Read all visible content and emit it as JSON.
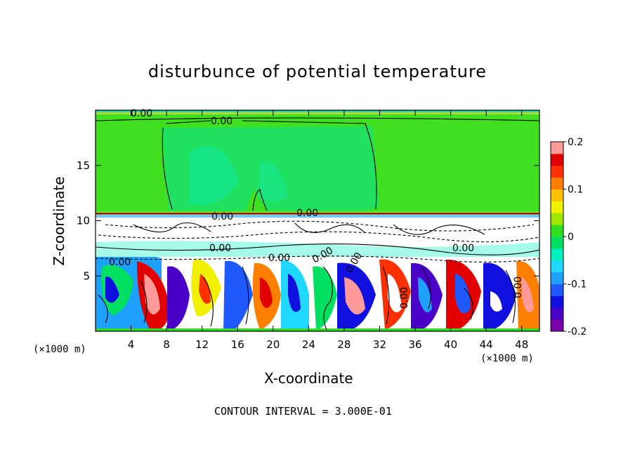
{
  "chart_data": {
    "type": "heatmap",
    "title": "disturbunce of potential temperature",
    "xlabel": "X-coordinate",
    "ylabel": "Z-coordinate",
    "x_unit": "(×1000 m)",
    "xlim": [
      0,
      50
    ],
    "ylim": [
      0,
      20
    ],
    "x_ticks": [
      4,
      8,
      12,
      16,
      20,
      24,
      28,
      32,
      36,
      40,
      44,
      48
    ],
    "y_ticks": [
      5,
      10,
      15
    ],
    "colorbar": {
      "range": [
        -0.2,
        0.2
      ],
      "tick_labels": [
        "0.2",
        "0.1",
        "0",
        "-0.1",
        "-0.2"
      ],
      "tick_values": [
        0.2,
        0.1,
        0,
        -0.1,
        -0.2
      ],
      "colors": [
        "#7b00a8",
        "#4b00c8",
        "#1010e0",
        "#1e5aff",
        "#1ea0ff",
        "#20d8ff",
        "#00f0c0",
        "#00e060",
        "#30e020",
        "#a0e800",
        "#f0f000",
        "#ffc000",
        "#ff8000",
        "#ff3000",
        "#e00000",
        "#ff9a9a"
      ]
    },
    "contour_labels": [
      "0.00",
      "0.00",
      "0.00",
      "0.00",
      "0.00",
      "0.00",
      "0.00",
      "0.00",
      "0.00",
      "0.00",
      "0.00",
      "0.00"
    ],
    "contour_interval_text": "CONTOUR INTERVAL = 3.000E-01",
    "field": {
      "upper_layer_value": 0.0,
      "upper_layer_range_z": [
        10.5,
        20
      ],
      "turbulent_layer_range_z": [
        0,
        10.5
      ]
    }
  }
}
